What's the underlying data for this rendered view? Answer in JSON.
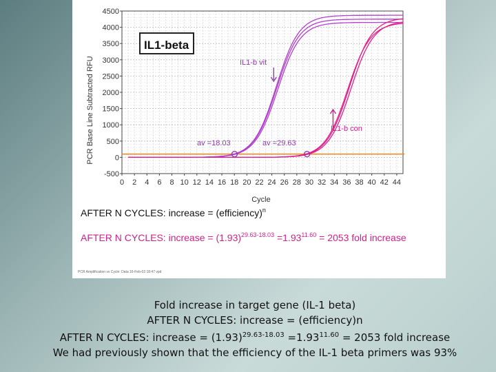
{
  "chart_data": {
    "type": "line",
    "title": "IL1-beta",
    "ylabel": "PCR Base Line Subtracted RFU",
    "xlabel": "Cycle",
    "xlim": [
      0,
      45
    ],
    "ylim": [
      -500,
      4500
    ],
    "xticks": [
      0,
      2,
      4,
      6,
      8,
      10,
      12,
      14,
      16,
      18,
      20,
      22,
      24,
      26,
      28,
      30,
      32,
      34,
      36,
      38,
      40,
      42,
      44
    ],
    "yticks": [
      -500,
      0,
      500,
      1000,
      1500,
      2000,
      2500,
      3000,
      3500,
      4000,
      4500
    ],
    "threshold": 100,
    "series": [
      {
        "name": "IL1-b vit",
        "color": "#b23fcf",
        "curves": [
          {
            "ct": 17.9,
            "max": 4370
          },
          {
            "ct": 18.0,
            "max": 4250
          },
          {
            "ct": 18.2,
            "max": 4150
          }
        ]
      },
      {
        "name": "IL1-b con",
        "color": "#e0208a",
        "curves": [
          {
            "ct": 29.4,
            "max": 4150
          },
          {
            "ct": 29.6,
            "max": 4300
          },
          {
            "ct": 29.9,
            "max": 4200
          }
        ]
      }
    ],
    "annotations": {
      "vit_label": "IL1-b vit",
      "con_label": "IL1-b con",
      "av_vit": "av =18.03",
      "av_con": "av =29.63",
      "av_vit_value": 18.03,
      "av_con_value": 29.63
    }
  },
  "slide": {
    "formula_general": "AFTER N CYCLES: increase = (efficiency)",
    "formula_general_sup": "n",
    "formula_specific_pre": "AFTER N CYCLES: increase = (1.93)",
    "formula_specific_sup1": "29.63-18.03",
    "formula_specific_mid": " =1.93",
    "formula_specific_sup2": "11.60",
    "formula_specific_post": " = 2053 fold increase",
    "footer_text": "PCR Amplification vs Cycle: Data 16-Feb-03 18:47 vpd"
  },
  "caption": {
    "line1": "Fold increase in target gene (IL-1 beta)",
    "line2": "AFTER N CYCLES: increase = (efficiency)n",
    "line3_pre": "AFTER N CYCLES: increase = (1.93)",
    "line3_sup1": "29.63-18.03",
    "line3_mid": " =1.93",
    "line3_sup2": "11.60",
    "line3_post": "  = 2053 fold increase",
    "line4": "We had previously shown that the efficiency of the IL-1 beta primers was 93%"
  }
}
